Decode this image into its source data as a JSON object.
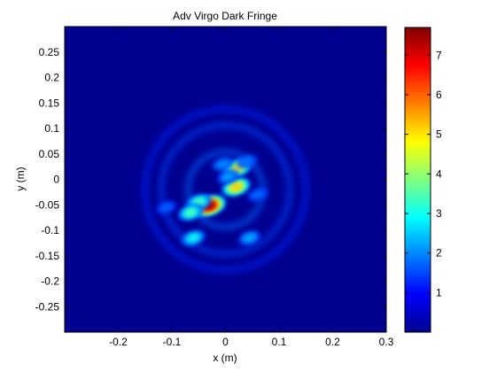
{
  "chart_data": {
    "type": "heatmap",
    "title": "Adv Virgo Dark Fringe",
    "xlabel": "x (m)",
    "ylabel": "y (m)",
    "xlim": [
      -0.3,
      0.3
    ],
    "ylim": [
      -0.3,
      0.3
    ],
    "xticks": [
      -0.2,
      -0.1,
      0,
      0.1,
      0.2,
      0.3
    ],
    "yticks": [
      0.25,
      0.2,
      0.15,
      0.1,
      0.05,
      0,
      -0.05,
      -0.1,
      -0.15,
      -0.2,
      -0.25
    ],
    "grid": false,
    "colormap": "jet",
    "colorbar": {
      "range": [
        0,
        7.7
      ],
      "ticks": [
        1,
        2,
        3,
        4,
        5,
        6,
        7
      ]
    },
    "blobs": [
      {
        "x": -0.03,
        "y": -0.052,
        "value": 7.7
      },
      {
        "x": -0.05,
        "y": -0.045,
        "value": 3.0
      },
      {
        "x": -0.065,
        "y": -0.065,
        "value": 3.0
      },
      {
        "x": -0.06,
        "y": -0.115,
        "value": 2.4
      },
      {
        "x": 0.02,
        "y": -0.015,
        "value": 5.0
      },
      {
        "x": 0.022,
        "y": 0.022,
        "value": 4.6
      },
      {
        "x": 0.005,
        "y": 0.005,
        "value": 1.5
      },
      {
        "x": -0.005,
        "y": 0.03,
        "value": 1.3
      },
      {
        "x": 0.04,
        "y": 0.035,
        "value": 1.1
      },
      {
        "x": 0.045,
        "y": -0.115,
        "value": 1.6
      },
      {
        "x": 0.06,
        "y": -0.03,
        "value": 1.0
      },
      {
        "x": -0.11,
        "y": -0.055,
        "value": 0.9
      }
    ],
    "rings": [
      {
        "x": 0.0,
        "y": -0.02,
        "radius": 0.07,
        "value": 0.9
      },
      {
        "x": 0.0,
        "y": -0.02,
        "radius": 0.12,
        "value": 0.6
      },
      {
        "x": 0.0,
        "y": -0.02,
        "radius": 0.15,
        "value": 0.35
      }
    ]
  }
}
